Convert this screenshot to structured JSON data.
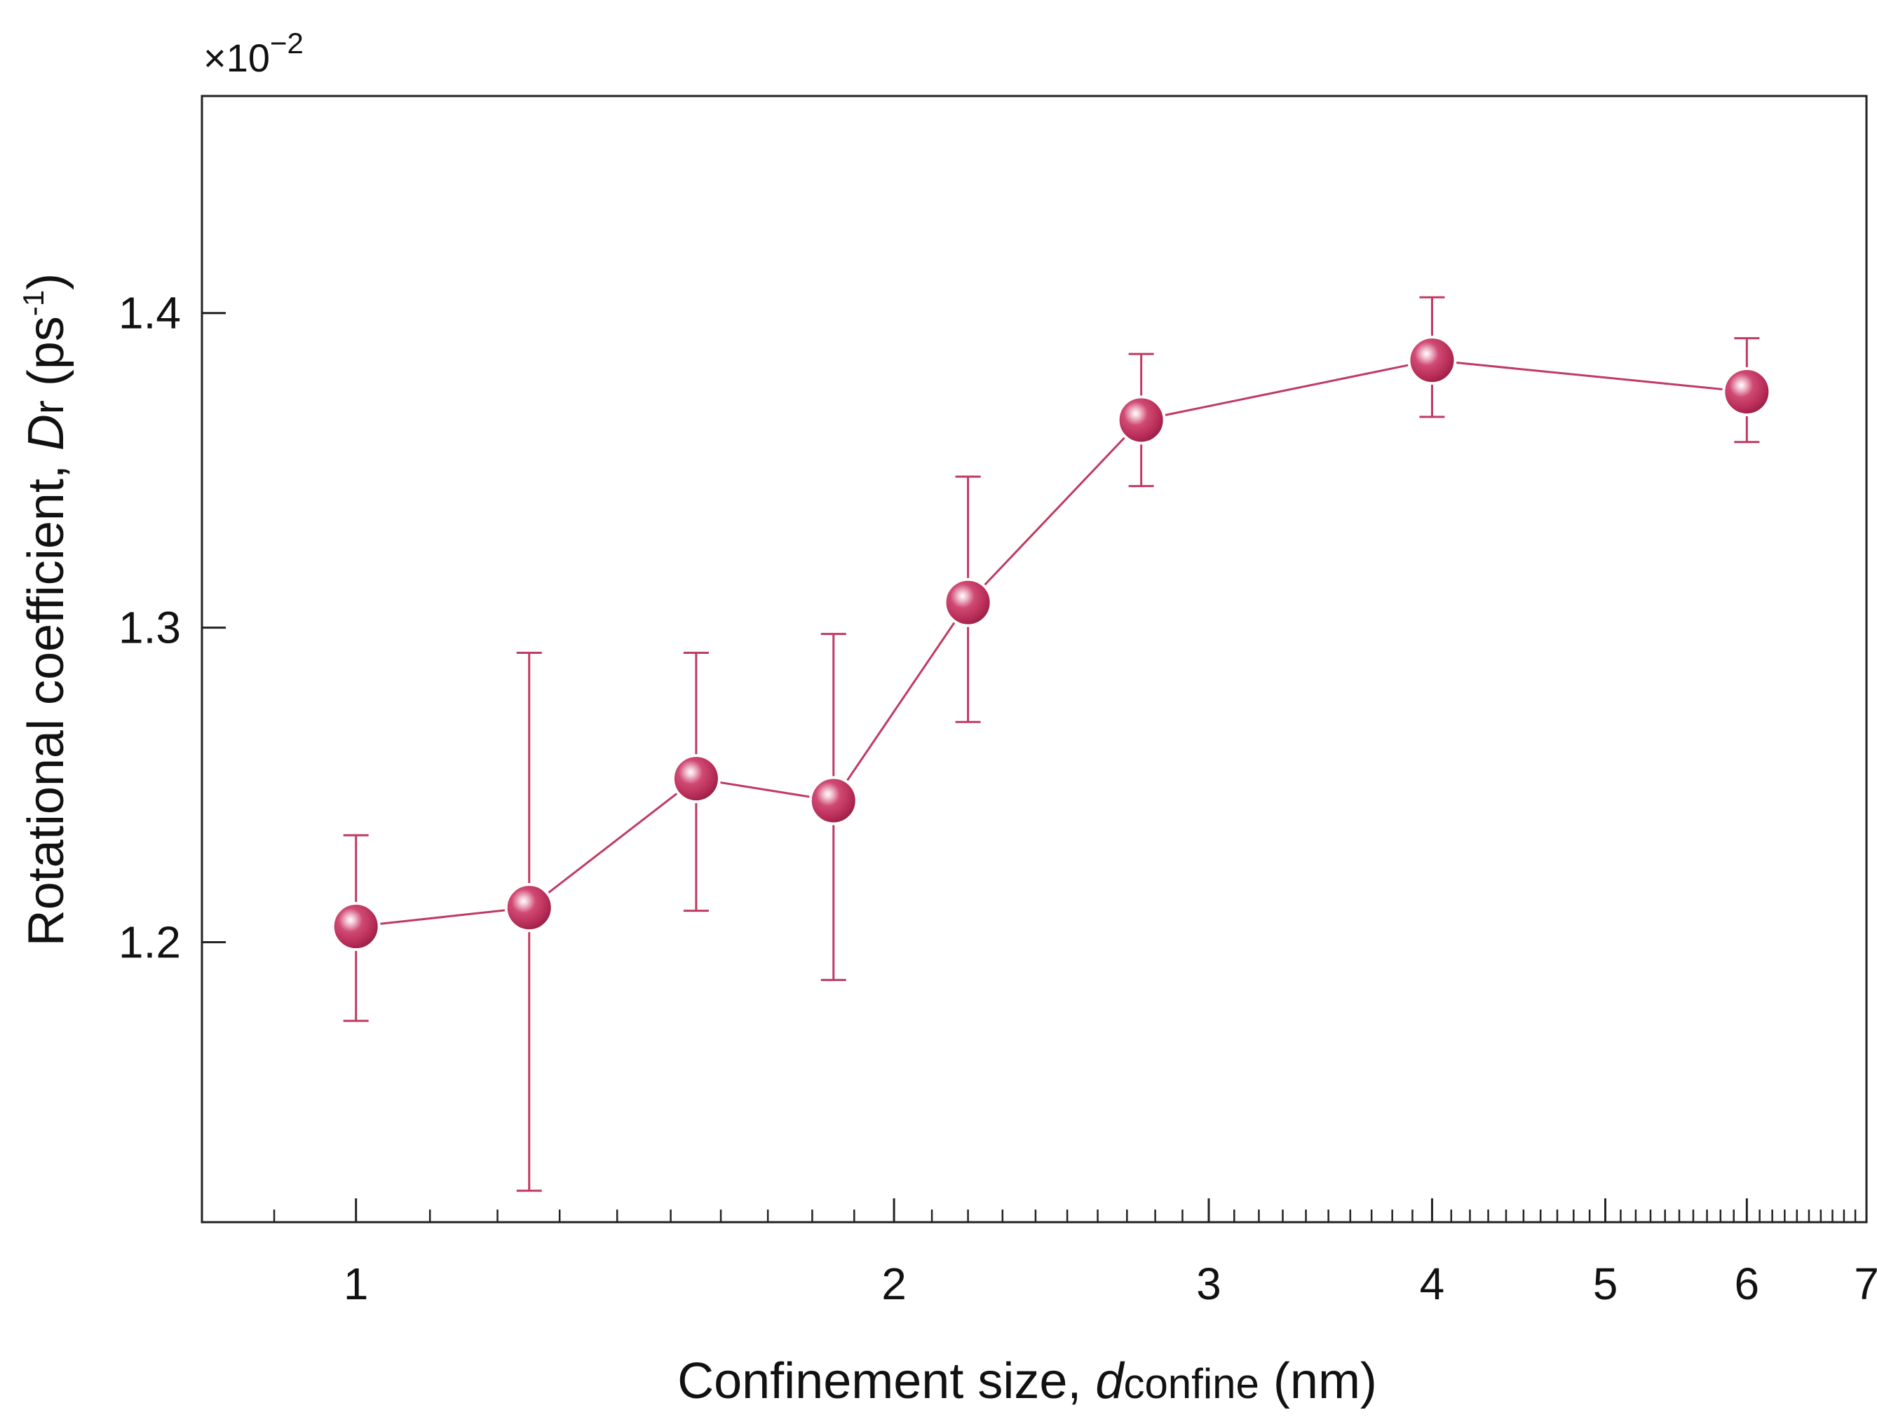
{
  "chart_data": {
    "type": "scatter",
    "xscale": "log",
    "xlim": [
      0.82,
      7.0
    ],
    "ylim": [
      1.111,
      1.469
    ],
    "x_ticks_major": [
      1,
      2,
      3,
      4,
      5,
      6,
      7
    ],
    "x_tick_labels": [
      "1",
      "2",
      "3",
      "4",
      "5",
      "6",
      "7"
    ],
    "y_ticks": [
      1.2,
      1.3,
      1.4
    ],
    "y_tick_labels": [
      "1.2",
      "1.3",
      "1.4"
    ],
    "y_multiplier": "×10",
    "y_multiplier_exp": "−2",
    "xlabel": "Confinement size, ",
    "xlabel_var": "d",
    "xlabel_sub": "confine",
    "xlabel_unit": " (nm)",
    "ylabel": "Rotational coefficient, ",
    "ylabel_var": "D",
    "ylabel_sub": "r",
    "ylabel_unit_open": " (ps",
    "ylabel_unit_exp": "-1",
    "ylabel_unit_close": ")",
    "series": [
      {
        "name": "Dr",
        "color": "#c03a62",
        "x": [
          1.0,
          1.25,
          1.55,
          1.85,
          2.2,
          2.75,
          4.0,
          6.0
        ],
        "y": [
          1.205,
          1.211,
          1.252,
          1.245,
          1.308,
          1.366,
          1.385,
          1.375
        ],
        "err_low": [
          1.175,
          1.121,
          1.21,
          1.188,
          1.27,
          1.345,
          1.367,
          1.359
        ],
        "err_high": [
          1.234,
          1.292,
          1.292,
          1.298,
          1.348,
          1.387,
          1.405,
          1.392
        ]
      }
    ]
  }
}
